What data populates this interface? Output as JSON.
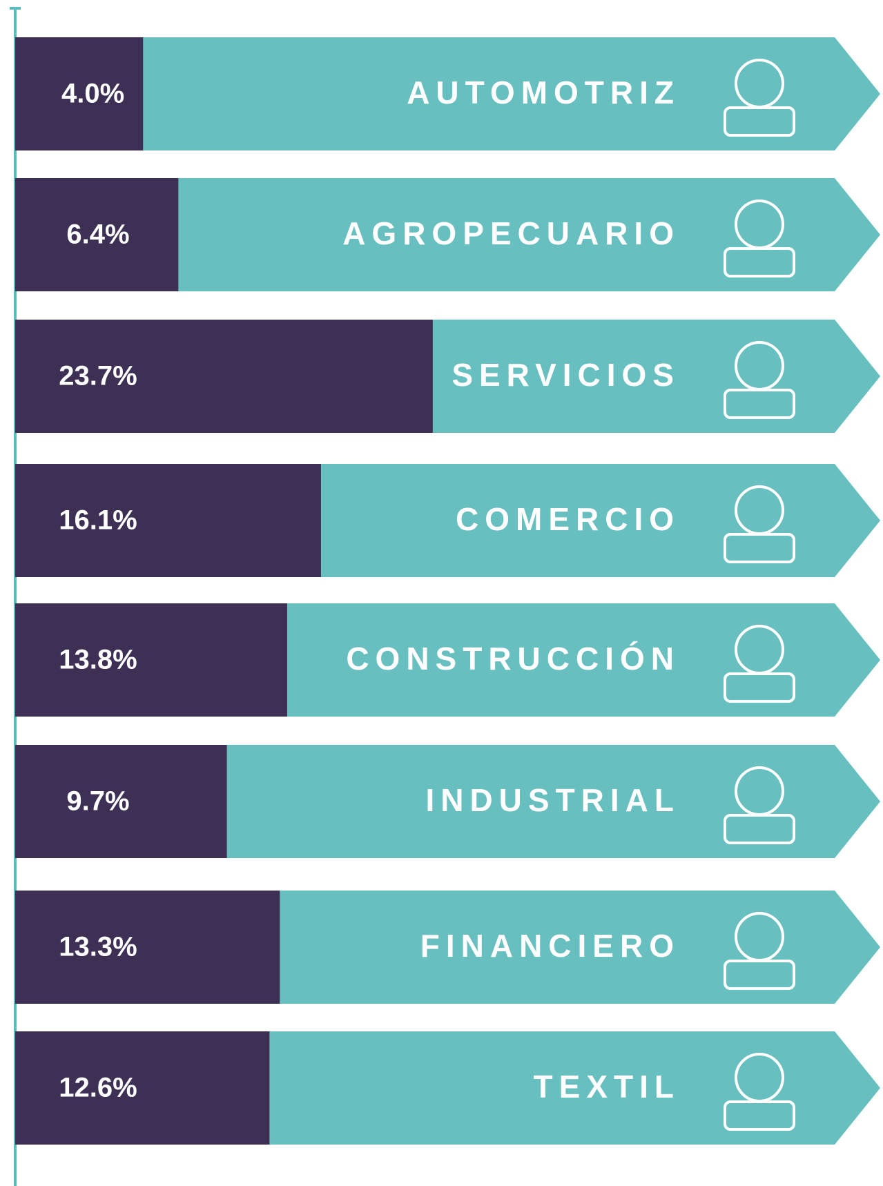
{
  "chart_data": {
    "type": "bar",
    "orientation": "horizontal",
    "categories": [
      "AUTOMOTRIZ",
      "AGROPECUARIO",
      "SERVICIOS",
      "COMERCIO",
      "CONSTRUCCIÓN",
      "INDUSTRIAL",
      "FINANCIERO",
      "TEXTIL"
    ],
    "values": [
      4.0,
      6.4,
      23.7,
      16.1,
      13.8,
      9.7,
      13.3,
      12.6
    ],
    "value_labels": [
      "4.0%",
      "6.4%",
      "23.7%",
      "16.1%",
      "13.8%",
      "9.7%",
      "13.3%",
      "12.6%"
    ],
    "color": "#3d3054",
    "band_color": "#67bfbf",
    "axis_color": "#5bbcbd"
  }
}
